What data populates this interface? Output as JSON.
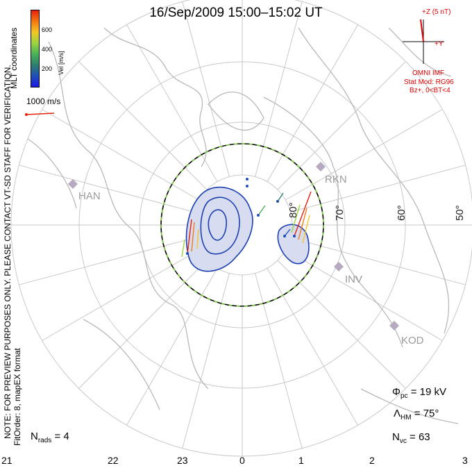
{
  "title": "16/Sep/2009 15:00–15:02 UT",
  "side_notes": {
    "mlt": "MLT coordinates",
    "warning": "NOTE: FOR PREVIEW PURPOSES ONLY. PLEASE CONTACT VT-SD STAFF FOR VERIFICATION.",
    "fit": "FitOrder: 8, mapEX format"
  },
  "colorbar": {
    "label": "Vel [m/s]",
    "ticks": [
      "600",
      "400",
      "200"
    ],
    "colors": [
      "#e8200c",
      "#f27a10",
      "#f3c623",
      "#9bd342",
      "#49b257",
      "#2c7f6e",
      "#1f4fb6",
      "#1a1ae6"
    ]
  },
  "velocity_scale": "1000 m/s",
  "stations": [
    "HAN",
    "RKN",
    "INV",
    "KOD"
  ],
  "latitude_labels": [
    "80°",
    "70°",
    "60°",
    "50°"
  ],
  "mlt_hours": [
    "21",
    "22",
    "23",
    "0",
    "1",
    "2",
    "3"
  ],
  "imf": {
    "z_label": "+Z (5 nT)",
    "y_label": "+Y",
    "source": "OMNI IMF",
    "model": "Stat Mod: RG96",
    "condition": "Bz+, 0<BT<4"
  },
  "stats": {
    "phi_pc": "19 kV",
    "lambda_hm": "75°",
    "n_vc": "63",
    "n_rads": "4"
  },
  "colors": {
    "coast": "#b8b8b8",
    "grid": "#c8c8c8",
    "contour": "#1b3fb0",
    "contour_fill": "#d7dcf0",
    "boundary_dash": "#7ccf3c",
    "imf": "#e00000"
  }
}
